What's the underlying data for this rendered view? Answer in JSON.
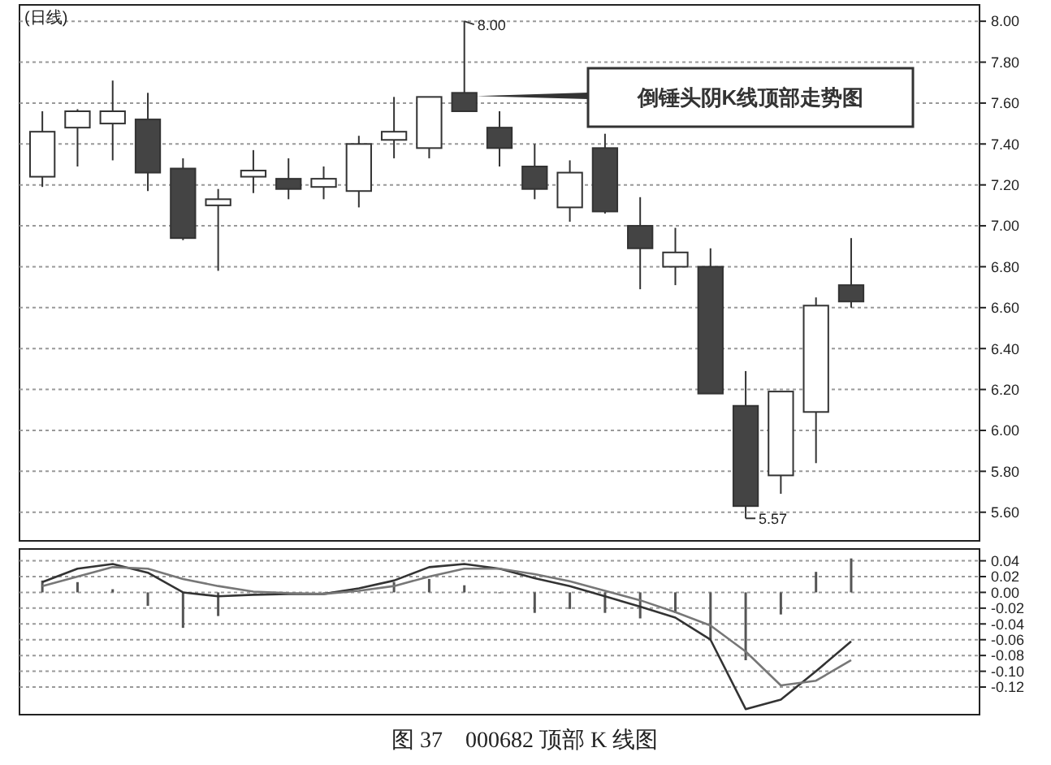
{
  "chart_data": [
    {
      "type": "candlestick",
      "title": "(日线)",
      "categories": [
        null,
        null,
        null,
        null,
        null,
        null,
        null,
        null,
        null,
        null,
        null,
        null,
        null,
        null,
        null,
        null,
        null,
        null,
        null,
        null,
        null,
        null,
        null,
        null,
        null,
        null,
        null
      ],
      "ohlc": [
        [
          7.24,
          7.56,
          7.19,
          7.46
        ],
        [
          7.48,
          7.57,
          7.29,
          7.56
        ],
        [
          7.5,
          7.71,
          7.32,
          7.56
        ],
        [
          7.52,
          7.65,
          7.17,
          7.26
        ],
        [
          7.28,
          7.33,
          6.93,
          6.94
        ],
        [
          7.1,
          7.18,
          6.78,
          7.13
        ],
        [
          7.24,
          7.37,
          7.16,
          7.27
        ],
        [
          7.23,
          7.33,
          7.13,
          7.18
        ],
        [
          7.19,
          7.29,
          7.13,
          7.23
        ],
        [
          7.17,
          7.44,
          7.09,
          7.4
        ],
        [
          7.42,
          7.63,
          7.33,
          7.46
        ],
        [
          7.38,
          7.63,
          7.33,
          7.63
        ],
        [
          7.65,
          8.0,
          7.56,
          7.56
        ],
        [
          7.48,
          7.56,
          7.29,
          7.38
        ],
        [
          7.29,
          7.4,
          7.13,
          7.18
        ],
        [
          7.09,
          7.32,
          7.02,
          7.26
        ],
        [
          7.38,
          7.45,
          7.06,
          7.07
        ],
        [
          7.0,
          7.14,
          6.69,
          6.89
        ],
        [
          6.8,
          6.99,
          6.71,
          6.87
        ],
        [
          6.8,
          6.89,
          6.18,
          6.18
        ],
        [
          6.12,
          6.29,
          5.57,
          5.63
        ],
        [
          5.78,
          6.19,
          5.69,
          6.19
        ],
        [
          6.09,
          6.65,
          5.84,
          6.61
        ],
        [
          6.71,
          6.94,
          6.6,
          6.63
        ],
        null,
        null,
        null
      ],
      "ylim": [
        5.46,
        8.08
      ],
      "yticks": [
        {
          "value": 8.0,
          "label": "8.00"
        },
        {
          "value": 7.8,
          "label": "7.80"
        },
        {
          "value": 7.6,
          "label": "7.60"
        },
        {
          "value": 7.4,
          "label": "7.40"
        },
        {
          "value": 7.2,
          "label": "7.20"
        },
        {
          "value": 7.0,
          "label": "7.00"
        },
        {
          "value": 6.8,
          "label": "6.80"
        },
        {
          "value": 6.6,
          "label": "6.60"
        },
        {
          "value": 6.4,
          "label": "6.40"
        },
        {
          "value": 6.2,
          "label": "6.20"
        },
        {
          "value": 6.0,
          "label": "6.00"
        },
        {
          "value": 5.8,
          "label": "5.80"
        },
        {
          "value": 5.6,
          "label": "5.60"
        }
      ],
      "grid": "y",
      "tick_labels": "y",
      "annotations": [
        "8.00",
        "5.57",
        "倒锤头阴K线顶部走势图"
      ]
    },
    {
      "type": "bar",
      "categories": [
        null,
        null,
        null,
        null,
        null,
        null,
        null,
        null,
        null,
        null,
        null,
        null,
        null,
        null,
        null,
        null,
        null,
        null,
        null,
        null,
        null,
        null,
        null,
        null,
        null,
        null,
        null
      ],
      "series": [
        {
          "type": "bar",
          "color": "#555555",
          "values": [
            0.015,
            0.013,
            0.004,
            -0.017,
            -0.045,
            -0.03,
            null,
            null,
            0.0,
            null,
            0.013,
            0.017,
            0.009,
            0.0,
            -0.026,
            -0.021,
            -0.026,
            -0.033,
            -0.026,
            -0.06,
            -0.086,
            -0.028,
            0.026,
            0.043,
            null,
            null,
            null
          ]
        },
        {
          "type": "line",
          "color": "#333333",
          "values": [
            0.013,
            0.03,
            0.036,
            0.025,
            0.0,
            -0.005,
            -0.003,
            -0.002,
            -0.002,
            0.005,
            0.015,
            0.032,
            0.036,
            0.03,
            0.018,
            0.008,
            -0.005,
            -0.018,
            -0.032,
            -0.06,
            -0.148,
            -0.136,
            -0.1,
            -0.062,
            null,
            null,
            null
          ]
        },
        {
          "type": "line",
          "color": "#777777",
          "values": [
            0.008,
            0.02,
            0.032,
            0.03,
            0.017,
            0.008,
            0.001,
            -0.001,
            -0.002,
            0.002,
            0.008,
            0.02,
            0.03,
            0.03,
            0.023,
            0.014,
            0.002,
            -0.01,
            -0.025,
            -0.042,
            -0.075,
            -0.118,
            -0.112,
            -0.086,
            null,
            null,
            null
          ]
        }
      ],
      "ylim": [
        -0.155,
        0.055
      ],
      "yticks": [
        {
          "value": 0.04,
          "label": "0.04"
        },
        {
          "value": 0.02,
          "label": "0.02"
        },
        {
          "value": 0,
          "label": "0.00"
        },
        {
          "value": -0.02,
          "label": "-0.02"
        },
        {
          "value": -0.04,
          "label": "-0.04"
        },
        {
          "value": -0.06,
          "label": "-0.06"
        },
        {
          "value": -0.08,
          "label": "-0.08"
        },
        {
          "value": -0.1,
          "label": "-0.10"
        },
        {
          "value": -0.12,
          "label": "-0.12"
        }
      ],
      "grid": "y",
      "tick_labels": "y",
      "annotations": [
        "图 37　000682 顶部 K 线图"
      ]
    }
  ]
}
